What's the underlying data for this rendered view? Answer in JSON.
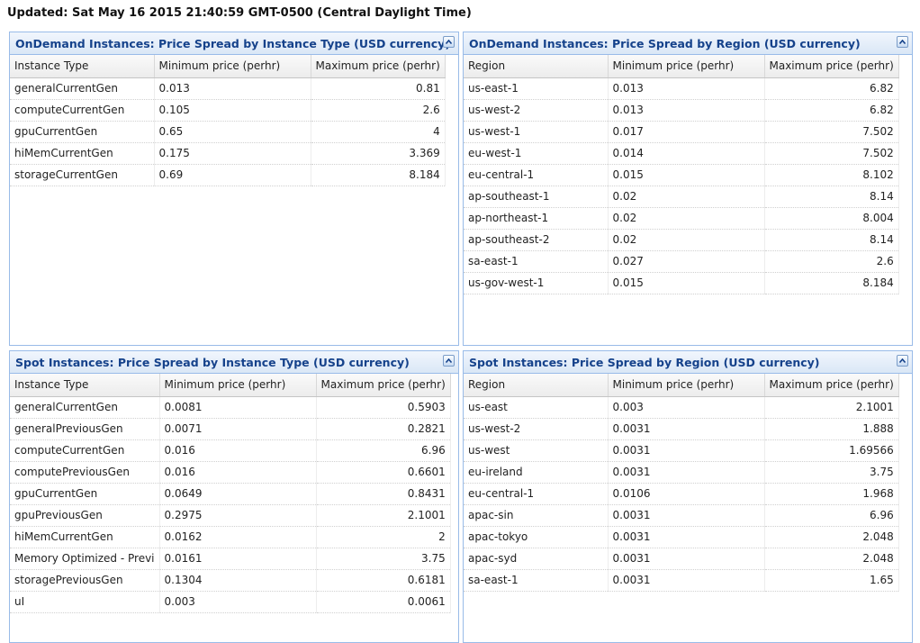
{
  "updated": "Updated: Sat May 16 2015 21:40:59 GMT-0500 (Central Daylight Time)",
  "panels": [
    {
      "title": "OnDemand Instances: Price Spread by Instance Type (USD currency)",
      "columns": [
        "Instance Type",
        "Minimum price (perhr)",
        "Maximum price (perhr)"
      ],
      "rows": [
        [
          "generalCurrentGen",
          "0.013",
          "0.81"
        ],
        [
          "computeCurrentGen",
          "0.105",
          "2.6"
        ],
        [
          "gpuCurrentGen",
          "0.65",
          "4"
        ],
        [
          "hiMemCurrentGen",
          "0.175",
          "3.369"
        ],
        [
          "storageCurrentGen",
          "0.69",
          "8.184"
        ]
      ]
    },
    {
      "title": "OnDemand Instances: Price Spread by Region (USD currency)",
      "columns": [
        "Region",
        "Minimum price (perhr)",
        "Maximum price (perhr)"
      ],
      "rows": [
        [
          "us-east-1",
          "0.013",
          "6.82"
        ],
        [
          "us-west-2",
          "0.013",
          "6.82"
        ],
        [
          "us-west-1",
          "0.017",
          "7.502"
        ],
        [
          "eu-west-1",
          "0.014",
          "7.502"
        ],
        [
          "eu-central-1",
          "0.015",
          "8.102"
        ],
        [
          "ap-southeast-1",
          "0.02",
          "8.14"
        ],
        [
          "ap-northeast-1",
          "0.02",
          "8.004"
        ],
        [
          "ap-southeast-2",
          "0.02",
          "8.14"
        ],
        [
          "sa-east-1",
          "0.027",
          "2.6"
        ],
        [
          "us-gov-west-1",
          "0.015",
          "8.184"
        ]
      ]
    },
    {
      "title": "Spot Instances: Price Spread by Instance Type (USD currency)",
      "columns": [
        "Instance Type",
        "Minimum price (perhr)",
        "Maximum price (perhr)"
      ],
      "rows": [
        [
          "generalCurrentGen",
          "0.0081",
          "0.5903"
        ],
        [
          "generalPreviousGen",
          "0.0071",
          "0.2821"
        ],
        [
          "computeCurrentGen",
          "0.016",
          "6.96"
        ],
        [
          "computePreviousGen",
          "0.016",
          "0.6601"
        ],
        [
          "gpuCurrentGen",
          "0.0649",
          "0.8431"
        ],
        [
          "gpuPreviousGen",
          "0.2975",
          "2.1001"
        ],
        [
          "hiMemCurrentGen",
          "0.0162",
          "2"
        ],
        [
          "Memory Optimized - Previ",
          "0.0161",
          "3.75"
        ],
        [
          "storagePreviousGen",
          "0.1304",
          "0.6181"
        ],
        [
          "uI",
          "0.003",
          "0.0061"
        ]
      ]
    },
    {
      "title": "Spot Instances: Price Spread by Region (USD currency)",
      "columns": [
        "Region",
        "Minimum price (perhr)",
        "Maximum price (perhr)"
      ],
      "rows": [
        [
          "us-east",
          "0.003",
          "2.1001"
        ],
        [
          "us-west-2",
          "0.0031",
          "1.888"
        ],
        [
          "us-west",
          "0.0031",
          "1.69566"
        ],
        [
          "eu-ireland",
          "0.0031",
          "3.75"
        ],
        [
          "eu-central-1",
          "0.0106",
          "1.968"
        ],
        [
          "apac-sin",
          "0.0031",
          "6.96"
        ],
        [
          "apac-tokyo",
          "0.0031",
          "2.048"
        ],
        [
          "apac-syd",
          "0.0031",
          "2.048"
        ],
        [
          "sa-east-1",
          "0.0031",
          "1.65"
        ]
      ]
    }
  ],
  "icons": {
    "collapse": "chevron-up-icon"
  },
  "colors": {
    "header_text": "#15428b",
    "panel_border": "#99bbe8"
  }
}
